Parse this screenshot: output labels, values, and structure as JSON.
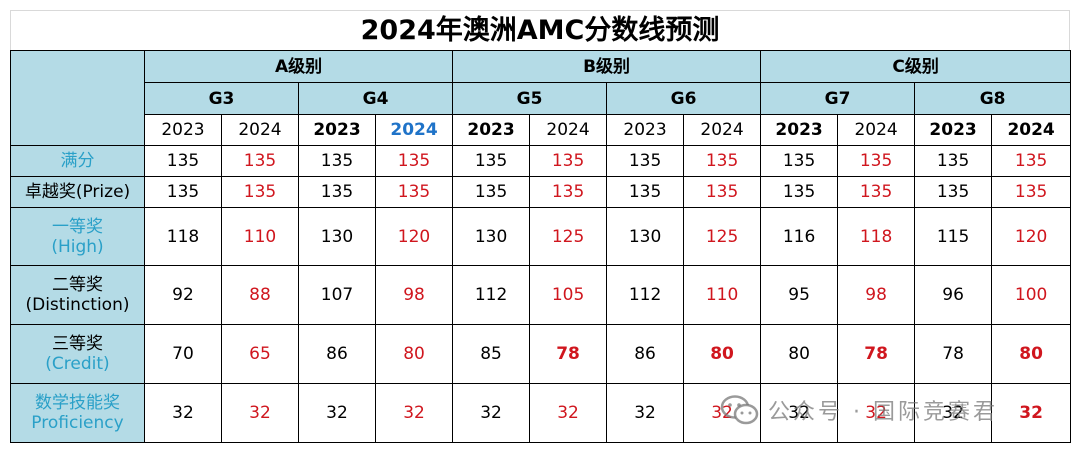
{
  "title": "2024年澳洲AMC分数线预测",
  "levels": [
    "A级别",
    "B级别",
    "C级别"
  ],
  "grades": [
    "G3",
    "G4",
    "G5",
    "G6",
    "G7",
    "G8"
  ],
  "years": [
    "2023",
    "2024",
    "2023",
    "2024",
    "2023",
    "2024",
    "2023",
    "2024",
    "2023",
    "2024",
    "2023",
    "2024"
  ],
  "rows": [
    {
      "label_line1": "满分",
      "label_line2": "",
      "values": [
        "135",
        "135",
        "135",
        "135",
        "135",
        "135",
        "135",
        "135",
        "135",
        "135",
        "135",
        "135"
      ]
    },
    {
      "label_line1": "卓越奖(Prize)",
      "label_line2": "",
      "values": [
        "135",
        "135",
        "135",
        "135",
        "135",
        "135",
        "135",
        "135",
        "135",
        "135",
        "135",
        "135"
      ]
    },
    {
      "label_line1": "一等奖",
      "label_line2": "(High)",
      "values": [
        "118",
        "110",
        "130",
        "120",
        "130",
        "125",
        "130",
        "125",
        "116",
        "118",
        "115",
        "120"
      ]
    },
    {
      "label_line1": "二等奖",
      "label_line2": "(Distinction)",
      "values": [
        "92",
        "88",
        "107",
        "98",
        "112",
        "105",
        "112",
        "110",
        "95",
        "98",
        "96",
        "100"
      ]
    },
    {
      "label_line1": "三等奖",
      "label_line2": "(Credit)",
      "values": [
        "70",
        "65",
        "86",
        "80",
        "85",
        "78",
        "86",
        "80",
        "80",
        "78",
        "78",
        "80"
      ]
    },
    {
      "label_line1": "数学技能奖",
      "label_line2": "Proficiency",
      "values": [
        "32",
        "32",
        "32",
        "32",
        "32",
        "32",
        "32",
        "32",
        "32",
        "32",
        "32",
        "32"
      ]
    }
  ],
  "watermark": {
    "text": "公众号 · 国际竞赛君",
    "icon": "wechat-logo-icon"
  },
  "colors": {
    "header_bg": "#b4dbe6",
    "red": "#d0161e",
    "cyan": "#2aa0c8",
    "blue": "#1f73c8"
  }
}
